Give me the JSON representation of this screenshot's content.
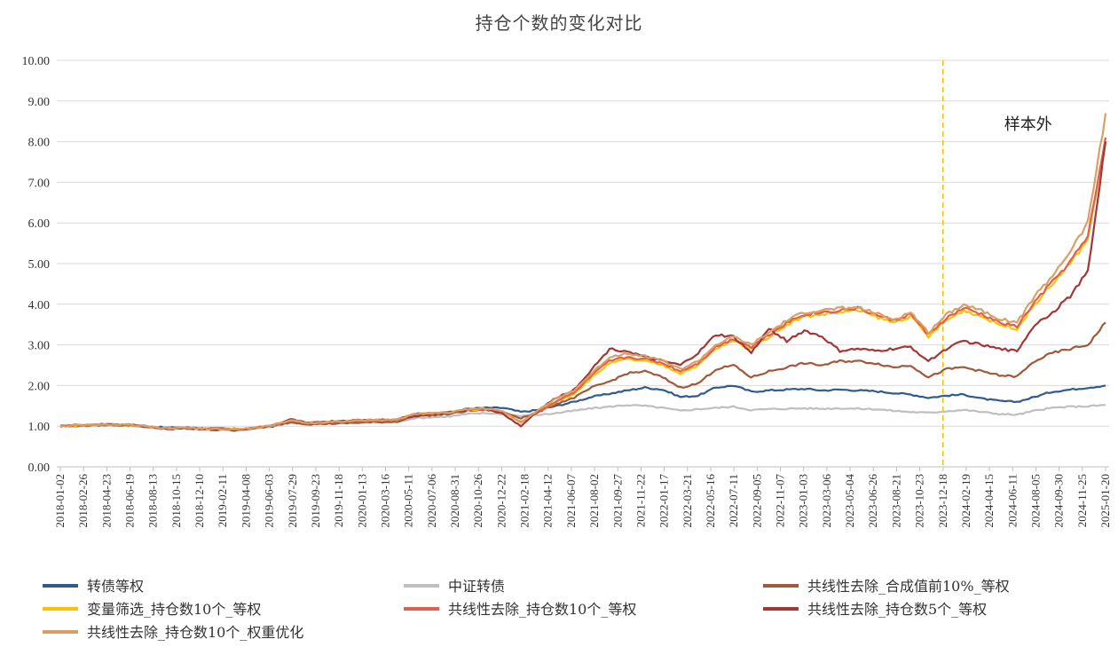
{
  "chart_data": {
    "type": "line",
    "title": "持仓个数的变化对比",
    "ylim": [
      0,
      10
    ],
    "yticks": [
      "0.00",
      "1.00",
      "2.00",
      "3.00",
      "4.00",
      "5.00",
      "6.00",
      "7.00",
      "8.00",
      "9.00",
      "10.00"
    ],
    "xticks": [
      "2018-01-02",
      "2018-02-26",
      "2018-04-23",
      "2018-06-19",
      "2018-08-13",
      "2018-10-15",
      "2018-12-10",
      "2019-02-11",
      "2019-04-08",
      "2019-06-03",
      "2019-07-29",
      "2019-09-23",
      "2019-11-18",
      "2020-01-13",
      "2020-03-16",
      "2020-05-11",
      "2020-07-06",
      "2020-08-31",
      "2020-10-26",
      "2020-12-22",
      "2021-02-18",
      "2021-04-12",
      "2021-06-07",
      "2021-08-02",
      "2021-09-27",
      "2021-11-22",
      "2022-01-17",
      "2022-03-21",
      "2022-05-16",
      "2022-07-11",
      "2022-09-05",
      "2022-11-07",
      "2023-01-03",
      "2023-03-06",
      "2023-05-04",
      "2023-06-26",
      "2023-08-21",
      "2023-10-23",
      "2023-12-18",
      "2024-02-19",
      "2024-04-15",
      "2024-06-11",
      "2024-08-05",
      "2024-09-30",
      "2024-11-25",
      "2025-01-20"
    ],
    "grid": true,
    "legend_position": "bottom",
    "annotation": {
      "text": "样本外",
      "x": "2023-12-18",
      "line_color": "#FFC000"
    },
    "series": [
      {
        "name": "转债等权",
        "color": "#2F5B8E",
        "values": [
          1.0,
          1.02,
          1.03,
          1.04,
          1.03,
          1.0,
          0.96,
          0.97,
          0.95,
          0.94,
          0.93,
          0.96,
          1.0,
          1.1,
          1.06,
          1.08,
          1.1,
          1.12,
          1.13,
          1.14,
          1.3,
          1.32,
          1.34,
          1.43,
          1.45,
          1.45,
          1.35,
          1.4,
          1.5,
          1.6,
          1.72,
          1.8,
          1.88,
          1.95,
          1.9,
          1.72,
          1.75,
          1.95,
          2.0,
          1.85,
          1.88,
          1.9,
          1.92,
          1.88,
          1.9,
          1.88,
          1.86,
          1.82,
          1.78,
          1.7,
          1.75,
          1.78,
          1.68,
          1.62,
          1.6,
          1.72,
          1.85,
          1.9,
          1.95,
          2.0
        ]
      },
      {
        "name": "中证转债",
        "color": "#BFBFBF",
        "values": [
          1.0,
          1.01,
          1.02,
          1.02,
          1.01,
          0.98,
          0.95,
          0.96,
          0.95,
          0.94,
          0.93,
          0.95,
          1.0,
          1.08,
          1.05,
          1.07,
          1.08,
          1.09,
          1.1,
          1.11,
          1.2,
          1.22,
          1.24,
          1.3,
          1.32,
          1.3,
          1.25,
          1.28,
          1.32,
          1.38,
          1.44,
          1.48,
          1.52,
          1.5,
          1.45,
          1.38,
          1.42,
          1.45,
          1.48,
          1.4,
          1.42,
          1.43,
          1.44,
          1.43,
          1.44,
          1.43,
          1.42,
          1.38,
          1.35,
          1.33,
          1.37,
          1.4,
          1.35,
          1.3,
          1.28,
          1.38,
          1.45,
          1.48,
          1.49,
          1.52
        ]
      },
      {
        "name": "共线性去除_合成值前10%_等权",
        "color": "#A0593A",
        "values": [
          1.0,
          1.01,
          1.02,
          1.03,
          1.02,
          0.98,
          0.95,
          0.96,
          0.94,
          0.93,
          0.92,
          0.95,
          1.0,
          1.1,
          1.05,
          1.06,
          1.07,
          1.09,
          1.1,
          1.11,
          1.25,
          1.27,
          1.3,
          1.38,
          1.4,
          1.35,
          1.2,
          1.35,
          1.55,
          1.7,
          1.95,
          2.1,
          2.3,
          2.35,
          2.2,
          1.95,
          2.05,
          2.4,
          2.5,
          2.2,
          2.35,
          2.45,
          2.55,
          2.5,
          2.6,
          2.6,
          2.55,
          2.45,
          2.5,
          2.2,
          2.4,
          2.45,
          2.35,
          2.25,
          2.22,
          2.6,
          2.8,
          2.9,
          3.0,
          3.55
        ]
      },
      {
        "name": "变量筛选_持仓数10个_等权",
        "color": "#FFC000",
        "values": [
          1.0,
          1.02,
          1.03,
          1.04,
          1.03,
          0.98,
          0.94,
          0.96,
          0.94,
          0.93,
          0.92,
          0.96,
          1.02,
          1.15,
          1.08,
          1.1,
          1.12,
          1.14,
          1.15,
          1.16,
          1.3,
          1.32,
          1.34,
          1.4,
          1.42,
          1.35,
          1.1,
          1.35,
          1.6,
          1.8,
          2.2,
          2.55,
          2.65,
          2.6,
          2.5,
          2.3,
          2.5,
          2.9,
          3.1,
          2.9,
          3.2,
          3.5,
          3.7,
          3.75,
          3.8,
          3.85,
          3.7,
          3.55,
          3.7,
          3.2,
          3.6,
          3.85,
          3.7,
          3.5,
          3.4,
          4.0,
          4.5,
          5.0,
          5.6,
          8.0
        ]
      },
      {
        "name": "共线性去除_持仓数10个_等权",
        "color": "#E06050",
        "values": [
          1.0,
          1.02,
          1.03,
          1.04,
          1.03,
          0.98,
          0.94,
          0.96,
          0.94,
          0.93,
          0.92,
          0.96,
          1.02,
          1.15,
          1.08,
          1.1,
          1.12,
          1.14,
          1.15,
          1.16,
          1.3,
          1.32,
          1.34,
          1.4,
          1.42,
          1.35,
          1.1,
          1.35,
          1.62,
          1.82,
          2.25,
          2.6,
          2.7,
          2.65,
          2.55,
          2.35,
          2.55,
          2.95,
          3.15,
          2.95,
          3.25,
          3.55,
          3.75,
          3.8,
          3.85,
          3.9,
          3.75,
          3.6,
          3.75,
          3.25,
          3.65,
          3.9,
          3.75,
          3.55,
          3.45,
          4.05,
          4.55,
          5.05,
          5.65,
          8.1
        ]
      },
      {
        "name": "共线性去除_持仓数5个_等权",
        "color": "#A33636",
        "values": [
          1.0,
          1.03,
          1.04,
          1.05,
          1.04,
          0.98,
          0.93,
          0.95,
          0.92,
          0.91,
          0.9,
          0.95,
          1.03,
          1.17,
          1.09,
          1.11,
          1.13,
          1.15,
          1.16,
          1.17,
          1.25,
          1.3,
          1.34,
          1.4,
          1.45,
          1.3,
          1.0,
          1.4,
          1.7,
          1.9,
          2.4,
          2.9,
          2.85,
          2.7,
          2.6,
          2.5,
          2.8,
          3.25,
          3.2,
          2.8,
          3.4,
          3.1,
          3.35,
          3.2,
          2.85,
          2.9,
          2.85,
          2.9,
          2.95,
          2.6,
          2.9,
          3.1,
          3.0,
          2.9,
          2.85,
          3.5,
          3.8,
          4.2,
          4.8,
          8.0
        ]
      },
      {
        "name": "共线性去除_持仓数10个_权重优化",
        "color": "#D9A066",
        "values": [
          1.0,
          1.02,
          1.03,
          1.04,
          1.03,
          0.98,
          0.94,
          0.96,
          0.94,
          0.93,
          0.92,
          0.96,
          1.02,
          1.15,
          1.08,
          1.1,
          1.12,
          1.14,
          1.15,
          1.16,
          1.3,
          1.32,
          1.34,
          1.42,
          1.44,
          1.36,
          1.1,
          1.4,
          1.68,
          1.88,
          2.3,
          2.7,
          2.8,
          2.72,
          2.62,
          2.4,
          2.6,
          3.0,
          3.2,
          3.0,
          3.3,
          3.6,
          3.8,
          3.85,
          3.9,
          3.92,
          3.78,
          3.62,
          3.8,
          3.3,
          3.75,
          4.0,
          3.85,
          3.65,
          3.55,
          4.2,
          4.7,
          5.3,
          6.0,
          8.7
        ]
      }
    ]
  }
}
